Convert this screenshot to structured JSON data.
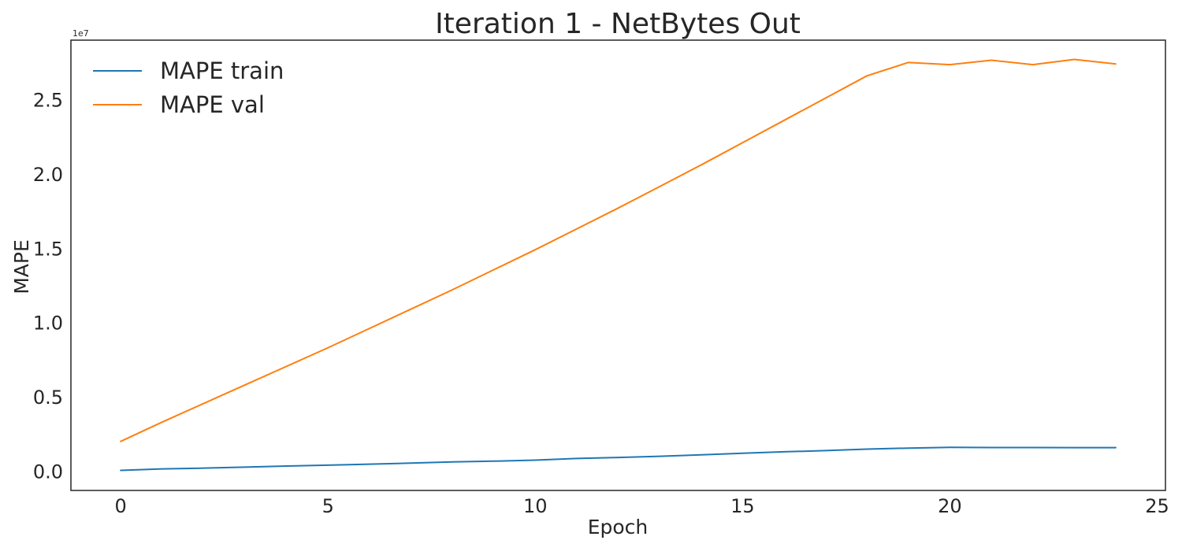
{
  "chart_data": {
    "type": "line",
    "title": "Iteration 1 - NetBytes Out",
    "xlabel": "Epoch",
    "ylabel": "MAPE",
    "y_offset_label": "1e7",
    "xlim": [
      -1.2,
      25.2
    ],
    "ylim": [
      -0.13,
      2.9
    ],
    "x_ticks": [
      0,
      5,
      10,
      15,
      20,
      25
    ],
    "x_tick_labels": [
      "0",
      "5",
      "10",
      "15",
      "20",
      "25"
    ],
    "y_ticks": [
      0,
      0.5,
      1.0,
      1.5,
      2.0,
      2.5
    ],
    "y_tick_labels": [
      "0.0",
      "0.5",
      "1.0",
      "1.5",
      "2.0",
      "2.5"
    ],
    "grid": false,
    "legend_position": "top-left",
    "x": [
      0,
      1,
      2,
      3,
      4,
      5,
      6,
      7,
      8,
      9,
      10,
      11,
      12,
      13,
      14,
      15,
      16,
      17,
      18,
      19,
      20,
      21,
      22,
      23,
      24
    ],
    "series": [
      {
        "name": "MAPE train",
        "color": "#1f77b4",
        "values": [
          0.005,
          0.015,
          0.02,
          0.027,
          0.034,
          0.04,
          0.047,
          0.054,
          0.062,
          0.067,
          0.074,
          0.085,
          0.092,
          0.1,
          0.11,
          0.12,
          0.13,
          0.138,
          0.148,
          0.155,
          0.16,
          0.159,
          0.159,
          0.158,
          0.158
        ]
      },
      {
        "name": "MAPE val",
        "color": "#ff7f0e",
        "values": [
          0.2,
          0.33,
          0.455,
          0.58,
          0.705,
          0.83,
          0.96,
          1.09,
          1.22,
          1.355,
          1.49,
          1.63,
          1.77,
          1.915,
          2.06,
          2.21,
          2.36,
          2.51,
          2.66,
          2.75,
          2.735,
          2.765,
          2.735,
          2.77,
          2.74
        ]
      }
    ]
  }
}
